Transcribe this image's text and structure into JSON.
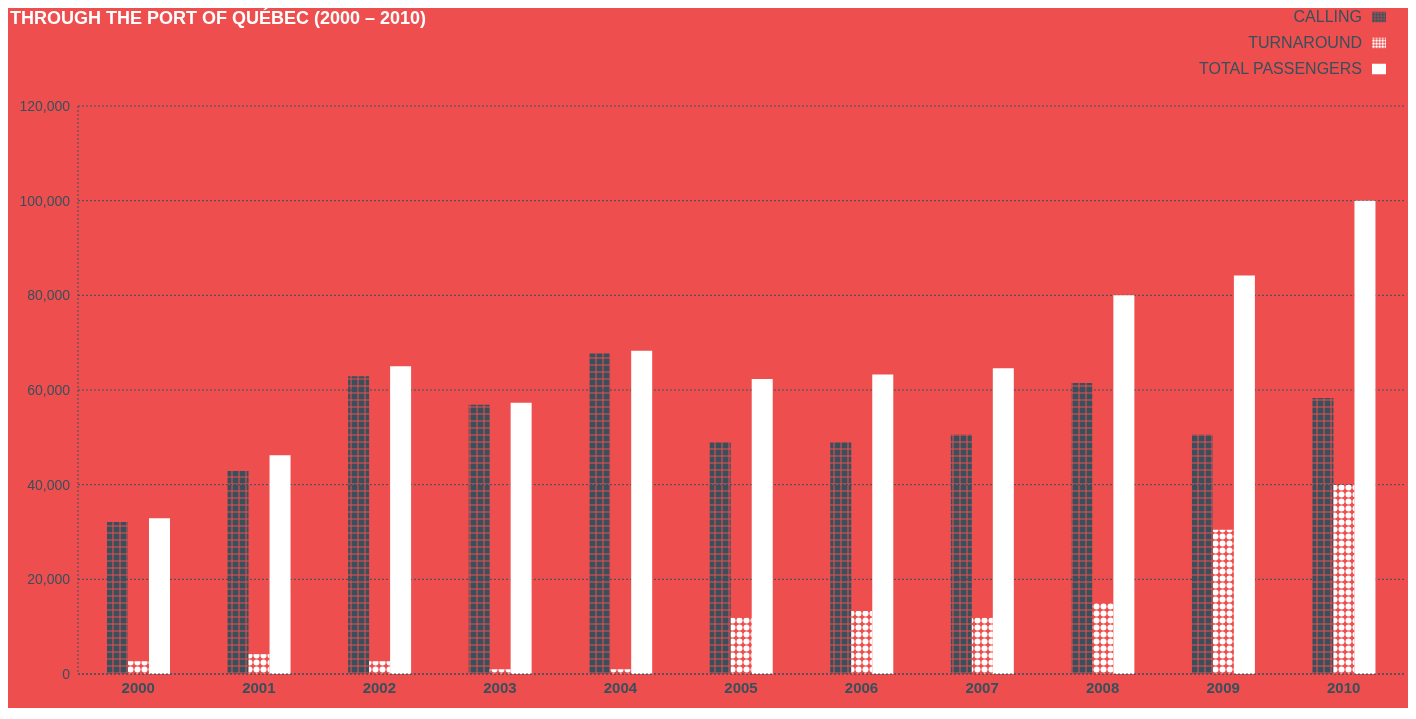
{
  "chart_data": {
    "type": "bar",
    "title": "THROUGH THE PORT OF QUÉBEC (2000 – 2010)",
    "categories": [
      "2000",
      "2001",
      "2002",
      "2003",
      "2004",
      "2005",
      "2006",
      "2007",
      "2008",
      "2009",
      "2010"
    ],
    "series": [
      {
        "name": "CALLING",
        "color": "#37505c",
        "marker": "square",
        "values": [
          32100,
          42900,
          62900,
          56900,
          67700,
          49000,
          49000,
          50600,
          61500,
          50600,
          58300
        ]
      },
      {
        "name": "TURNAROUND",
        "color": "#ffffff",
        "marker": "circle",
        "values": [
          2700,
          4200,
          2700,
          1000,
          1000,
          11900,
          13300,
          11900,
          15000,
          30500,
          40000
        ]
      },
      {
        "name": "TOTAL PASSENGERS",
        "color": "#ffffff",
        "marker": "none",
        "values": [
          32900,
          46200,
          65000,
          57300,
          68300,
          62300,
          63300,
          64600,
          80000,
          84200,
          100000
        ]
      }
    ],
    "ylim": [
      0,
      120000
    ],
    "yticks": [
      0,
      {
        "value": 20000,
        "label": "20,000"
      },
      {
        "value": 40000,
        "label": "40,000"
      },
      {
        "value": 60000,
        "label": "60,000"
      },
      {
        "value": 80000,
        "label": "80,000"
      },
      {
        "value": 100000,
        "label": "100,000"
      },
      {
        "value": 120000,
        "label": "120,000"
      }
    ],
    "grid": "y",
    "legend": "top right"
  }
}
